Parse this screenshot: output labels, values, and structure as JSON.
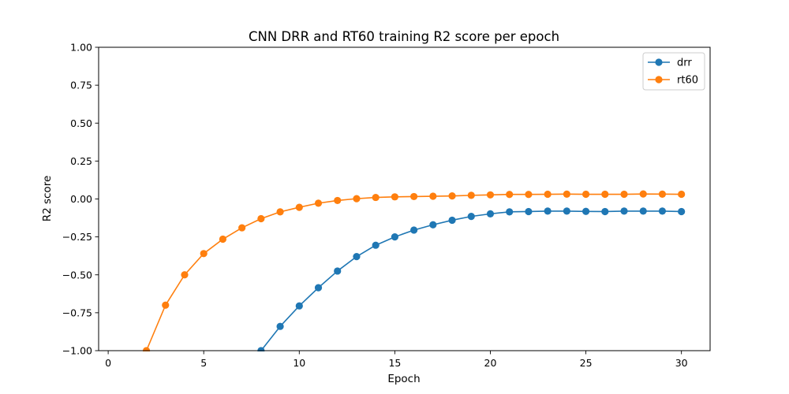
{
  "chart_data": {
    "type": "line",
    "title": "CNN DRR and RT60 training R2 score per epoch",
    "xlabel": "Epoch",
    "ylabel": "R2 score",
    "xlim": [
      -0.5,
      31.5
    ],
    "ylim": [
      -1.0,
      1.0
    ],
    "xticks": [
      0,
      5,
      10,
      15,
      20,
      25,
      30
    ],
    "yticks": [
      -1.0,
      -0.75,
      -0.5,
      -0.25,
      0.0,
      0.25,
      0.5,
      0.75,
      1.0
    ],
    "xtick_labels": [
      "0",
      "5",
      "10",
      "15",
      "20",
      "25",
      "30"
    ],
    "ytick_labels": [
      "−1.00",
      "−0.75",
      "−0.50",
      "−0.25",
      "0.00",
      "0.25",
      "0.50",
      "0.75",
      "1.00"
    ],
    "grid": false,
    "legend_position": "top-right",
    "series": [
      {
        "name": "drr",
        "color": "#1f77b4",
        "x": [
          8,
          9,
          10,
          11,
          12,
          13,
          14,
          15,
          16,
          17,
          18,
          19,
          20,
          21,
          22,
          23,
          24,
          25,
          26,
          27,
          28,
          29,
          30
        ],
        "y": [
          -1.0,
          -0.84,
          -0.705,
          -0.585,
          -0.475,
          -0.38,
          -0.305,
          -0.25,
          -0.205,
          -0.17,
          -0.14,
          -0.115,
          -0.098,
          -0.085,
          -0.083,
          -0.08,
          -0.08,
          -0.082,
          -0.083,
          -0.08,
          -0.08,
          -0.08,
          -0.083
        ]
      },
      {
        "name": "rt60",
        "color": "#ff7f0e",
        "x": [
          2,
          3,
          4,
          5,
          6,
          7,
          8,
          9,
          10,
          11,
          12,
          13,
          14,
          15,
          16,
          17,
          18,
          19,
          20,
          21,
          22,
          23,
          24,
          25,
          26,
          27,
          28,
          29,
          30
        ],
        "y": [
          -1.0,
          -0.7,
          -0.5,
          -0.36,
          -0.265,
          -0.19,
          -0.13,
          -0.085,
          -0.055,
          -0.028,
          -0.01,
          0.002,
          0.01,
          0.014,
          0.016,
          0.018,
          0.02,
          0.024,
          0.027,
          0.03,
          0.03,
          0.031,
          0.032,
          0.031,
          0.031,
          0.031,
          0.033,
          0.032,
          0.031
        ]
      }
    ]
  }
}
